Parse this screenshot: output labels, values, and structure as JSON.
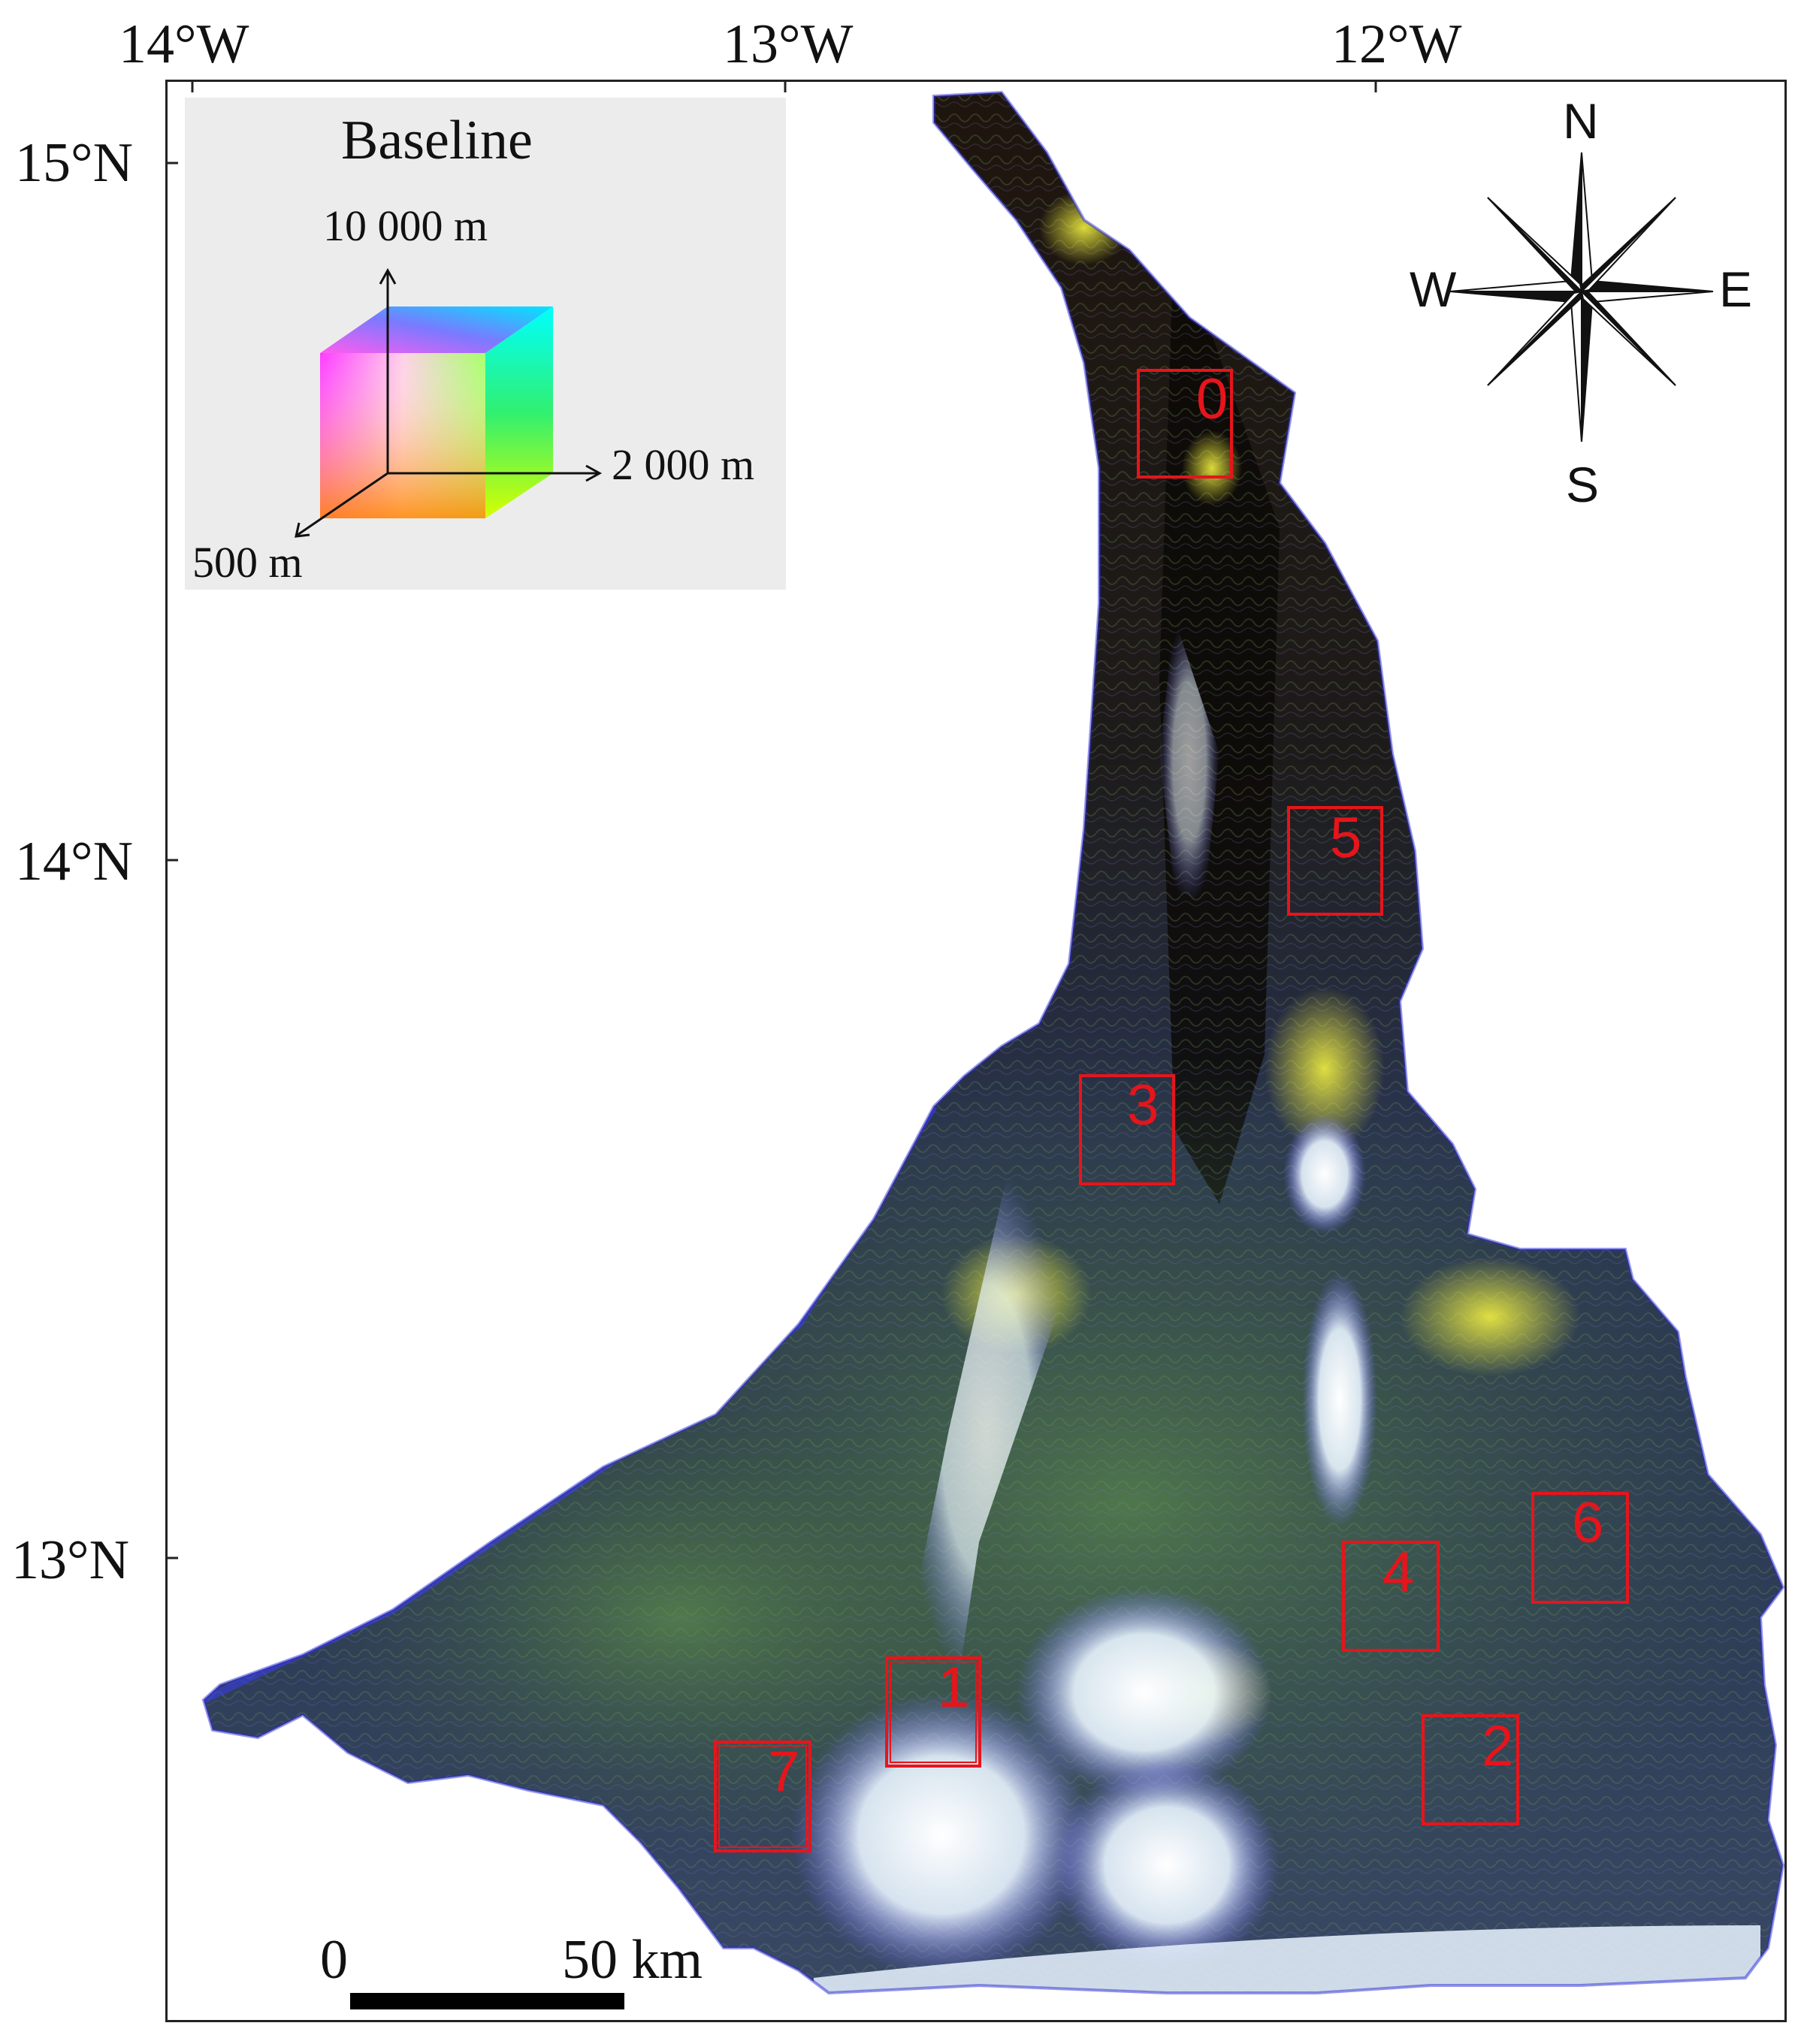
{
  "axes": {
    "longitude_labels": [
      "14°W",
      "13°W",
      "12°W"
    ],
    "latitude_labels": [
      "15°N",
      "14°N",
      "13°N"
    ]
  },
  "legend": {
    "title": "Baseline",
    "vertical_axis": "10 000 m",
    "horizontal_axis": "2 000 m",
    "depth_axis": "500 m"
  },
  "regions": [
    "0",
    "1",
    "2",
    "3",
    "4",
    "5",
    "6",
    "7"
  ],
  "compass": {
    "north": "N",
    "south": "S",
    "east": "E",
    "west": "W"
  },
  "scale_bar": {
    "start": "0",
    "end": "50 km"
  },
  "colors": {
    "region_outline": "#e8141b",
    "background": "#ffffff",
    "legend_bg": "#ececec"
  }
}
